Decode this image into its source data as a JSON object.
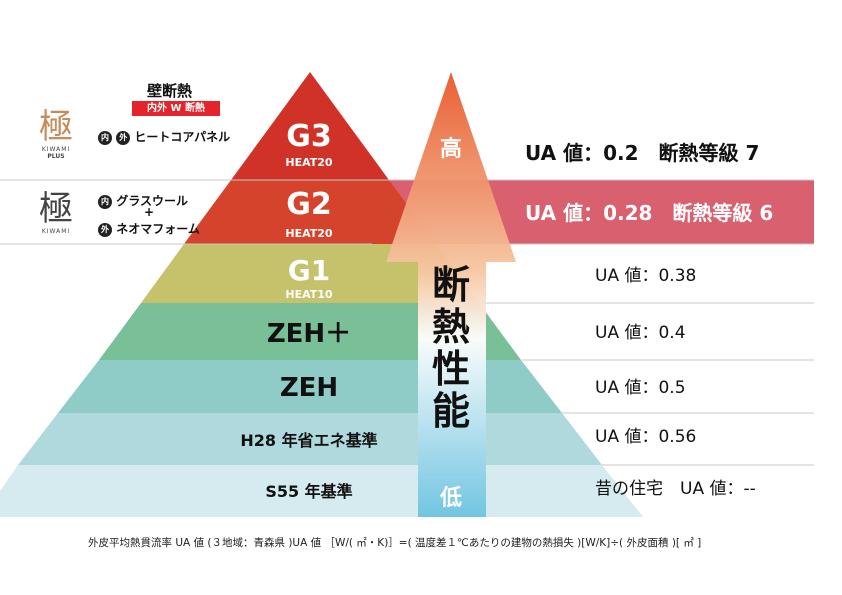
{
  "wall": {
    "title": "壁断熱",
    "badge": "内外 W 断熱",
    "logo_kanji": "極",
    "logo_plus_sub": "KIWAMI",
    "logo_plus_sub2": "PLUS",
    "logo_sub": "KIWAMI",
    "row1": {
      "mark_in": "内",
      "mark_out": "外",
      "text": "ヒートコアパネル"
    },
    "row2": {
      "mark_in": "内",
      "text_in": "グラスウール",
      "plus": "+",
      "mark_out": "外",
      "text_out": "ネオマフォーム"
    }
  },
  "arrow": {
    "high": "高",
    "low": "低",
    "label": "断熱性能"
  },
  "tiers": [
    {
      "label": "G3",
      "sub": "HEAT20",
      "value": "UA 値：0.2　断熱等級 7",
      "color": "#d03228"
    },
    {
      "label": "G2",
      "sub": "HEAT20",
      "value": "UA 値：0.28　断熱等級 6",
      "color": "#e0693b"
    },
    {
      "label": "G1",
      "sub": "HEAT10",
      "value": "UA 値：0.38",
      "color": "#c6c26c"
    },
    {
      "label": "ZEH＋",
      "sub": "",
      "value": "UA 値：0.4",
      "color": "#79bf97"
    },
    {
      "label": "ZEH",
      "sub": "",
      "value": "UA 値：0.5",
      "color": "#8fcbc7"
    },
    {
      "label": "H28 年省エネ基準",
      "sub": "",
      "value": "UA 値：0.56",
      "color": "#afd9dc"
    },
    {
      "label": "S55 年基準",
      "sub": "",
      "value": "昔の住宅　UA 値：--",
      "color": "#d5ebf0"
    }
  ],
  "footnote": "外皮平均熱貫流率 UA 値 (３地域：青森県 )UA 値 ［W/( ㎡・K)］=( 温度差１℃あたりの建物の熱損失 )[W/K]÷( 外皮面積 )[ ㎡ ]",
  "colors": {
    "highlight_band": "#d9606f",
    "badge": "#e4232a",
    "arrow_top": "#e8572a",
    "arrow_bottom": "#6cc3e0"
  }
}
